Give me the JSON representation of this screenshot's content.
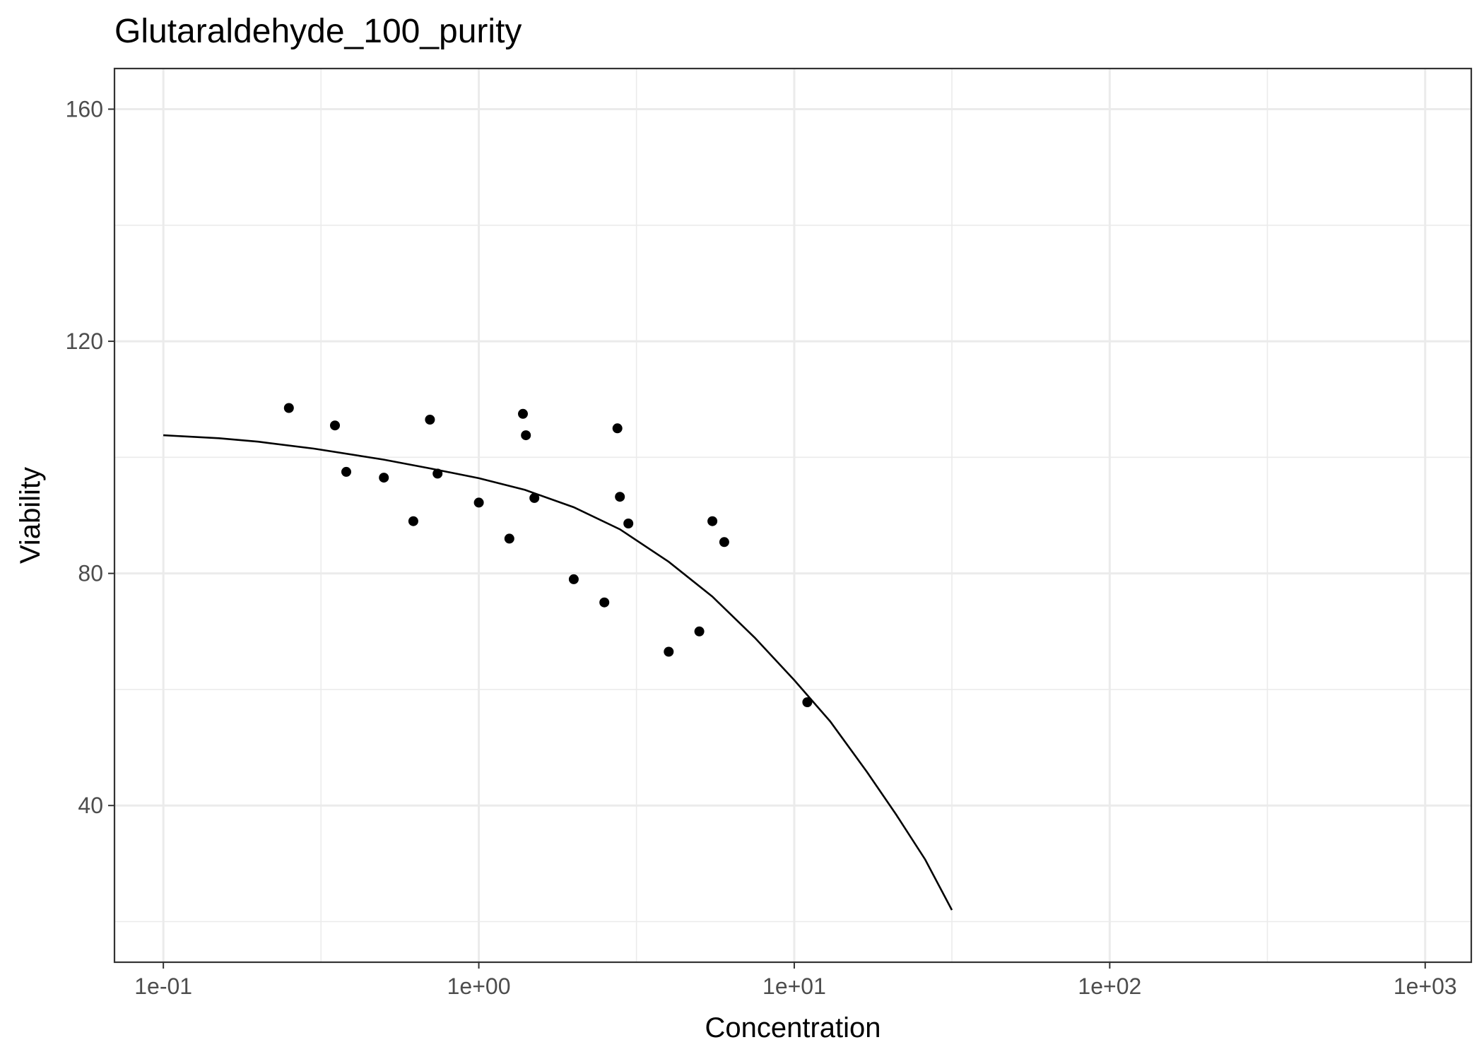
{
  "chart_data": {
    "type": "scatter",
    "title": "Glutaraldehyde_100_purity",
    "xlabel": "Concentration",
    "ylabel": "Viability",
    "xscale": "log10",
    "xlim": [
      0.07,
      1400
    ],
    "ylim": [
      13,
      167
    ],
    "grid": true,
    "x_ticks": [
      0.1,
      1,
      10,
      100,
      1000
    ],
    "x_tick_labels": [
      "1e-01",
      "1e+00",
      "1e+01",
      "1e+02",
      "1e+03"
    ],
    "x_minor_ticks": [
      0.316,
      3.16,
      31.6,
      316
    ],
    "y_ticks": [
      40,
      80,
      120,
      160
    ],
    "y_tick_labels": [
      "40",
      "80",
      "120",
      "160"
    ],
    "y_minor_ticks": [
      20,
      60,
      100,
      140
    ],
    "series": [
      {
        "kind": "points",
        "color": "#000000",
        "x": [
          0.25,
          0.35,
          0.38,
          0.5,
          0.62,
          0.7,
          0.74,
          1.0,
          1.25,
          1.38,
          1.41,
          1.5,
          2.0,
          2.5,
          2.75,
          2.8,
          2.98,
          4.0,
          5.0,
          5.5,
          6.0,
          11.0
        ],
        "y": [
          108.5,
          105.5,
          97.5,
          96.5,
          89,
          106.5,
          97.2,
          92.2,
          86,
          107.5,
          103.8,
          93,
          79,
          75,
          105,
          93.2,
          88.6,
          66.5,
          70,
          89,
          85.4,
          57.8
        ]
      },
      {
        "kind": "fit_line",
        "color": "#000000",
        "x": [
          0.1,
          0.15,
          0.2,
          0.3,
          0.5,
          0.7,
          1.0,
          1.4,
          2.0,
          2.8,
          4.0,
          5.5,
          7.5,
          10.0,
          13.0,
          17.0,
          21.0,
          26.0,
          31.6
        ],
        "y": [
          103.8,
          103.3,
          102.7,
          101.5,
          99.6,
          98.1,
          96.4,
          94.4,
          91.4,
          87.6,
          82.0,
          76.0,
          68.9,
          61.6,
          54.5,
          45.8,
          38.5,
          30.7,
          22.0
        ]
      }
    ]
  }
}
